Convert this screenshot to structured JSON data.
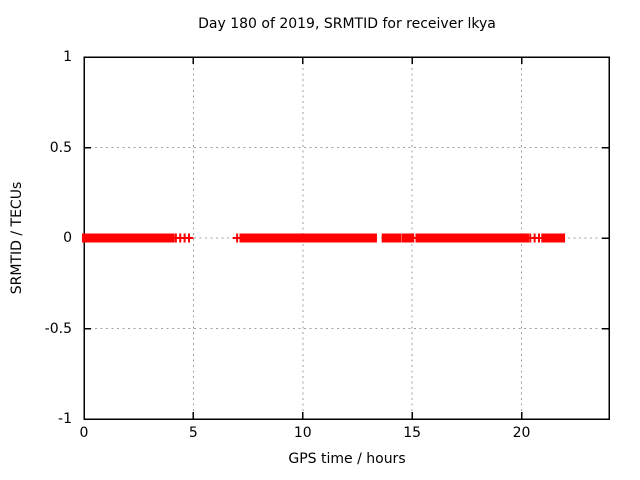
{
  "chart_data": {
    "type": "scatter",
    "title": "Day 180 of 2019, SRMTID for receiver lkya",
    "xlabel": "GPS time / hours",
    "ylabel": "SRMTID / TECUs",
    "xlim": [
      0,
      24
    ],
    "ylim": [
      -1,
      1
    ],
    "grid": true,
    "legend": "none",
    "marker": "plus",
    "x_ticks": [
      {
        "value": 0,
        "label": "0"
      },
      {
        "value": 5,
        "label": "5"
      },
      {
        "value": 10,
        "label": "10"
      },
      {
        "value": 15,
        "label": "15"
      },
      {
        "value": 20,
        "label": "20"
      }
    ],
    "y_ticks": [
      {
        "value": 1,
        "label": "1"
      },
      {
        "value": 0.5,
        "label": "0.5"
      },
      {
        "value": 0,
        "label": "0"
      },
      {
        "value": -0.5,
        "label": "-0.5"
      },
      {
        "value": -1,
        "label": "-1"
      }
    ],
    "series": [
      {
        "name": "SRMTID",
        "y_value": 0,
        "dense_runs_hours": [
          [
            0.0,
            4.05
          ],
          [
            7.2,
            12.9
          ],
          [
            13.05,
            13.3
          ],
          [
            13.7,
            14.4
          ],
          [
            14.6,
            14.95
          ],
          [
            15.3,
            20.25
          ],
          [
            21.05,
            21.9
          ]
        ],
        "sparse_points_hours": [
          4.2,
          4.4,
          4.6,
          4.8,
          7.0,
          15.05,
          15.2,
          20.4,
          20.6,
          20.8,
          20.95
        ]
      }
    ]
  },
  "colors": {
    "series": "#ff0000",
    "grid": "#a0a0a0",
    "axis": "#000000",
    "text": "#000000",
    "background": "#ffffff"
  }
}
